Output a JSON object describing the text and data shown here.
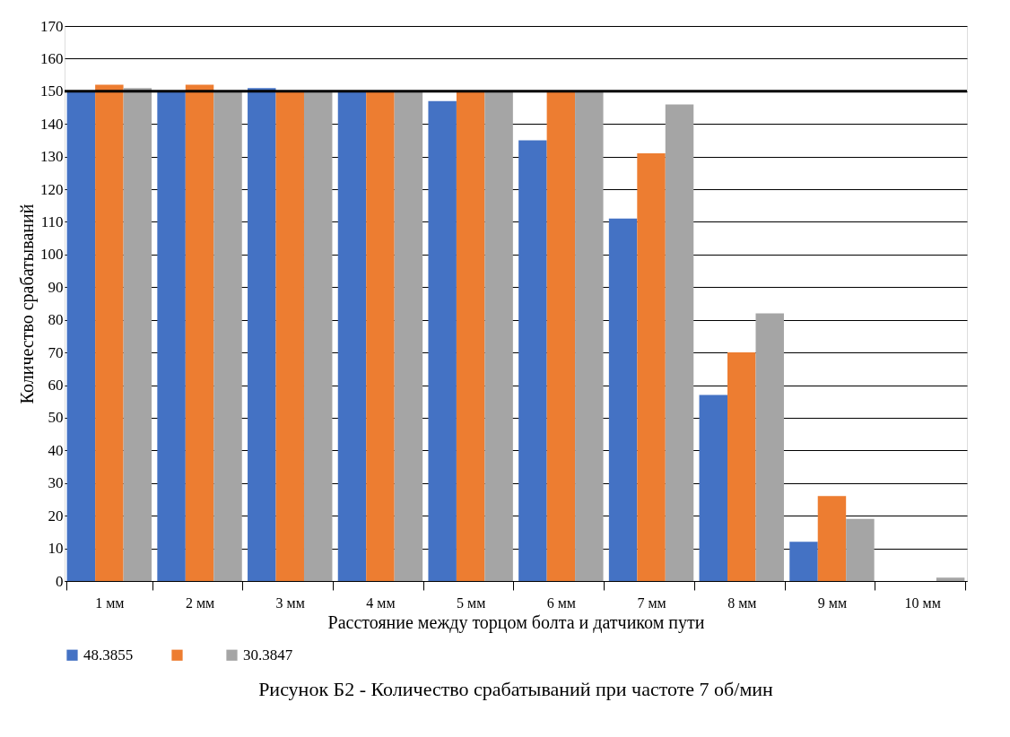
{
  "chart_data": {
    "type": "bar",
    "title": "Рисунок Б2 - Количество срабатываний при частоте 7 об/мин",
    "xlabel": "Расстояние между торцом болта и датчиком пути",
    "ylabel": "Количество срабатываний",
    "categories": [
      "1 мм",
      "2 мм",
      "3 мм",
      "4 мм",
      "5 мм",
      "6 мм",
      "7 мм",
      "8 мм",
      "9 мм",
      "10 мм"
    ],
    "series": [
      {
        "name": "48.3855",
        "color": "#4472c4",
        "values": [
          150,
          150,
          151,
          150,
          147,
          135,
          111,
          57,
          12,
          0
        ]
      },
      {
        "color": "#ed7d31",
        "values": [
          152,
          152,
          150,
          150,
          150,
          150,
          131,
          70,
          26,
          0
        ]
      },
      {
        "name": "30.3847",
        "color": "#a5a5a5",
        "values": [
          151,
          150,
          150,
          150,
          150,
          150,
          146,
          82,
          19,
          1
        ]
      }
    ],
    "ylim": [
      0,
      170
    ],
    "yticks": [
      0,
      10,
      20,
      30,
      40,
      50,
      60,
      70,
      80,
      90,
      100,
      110,
      120,
      130,
      140,
      150,
      160,
      170
    ],
    "grid": "y",
    "legend": "bottom",
    "ref_lines": [
      {
        "axis": "y",
        "value": 150,
        "color": "#000000"
      }
    ]
  }
}
